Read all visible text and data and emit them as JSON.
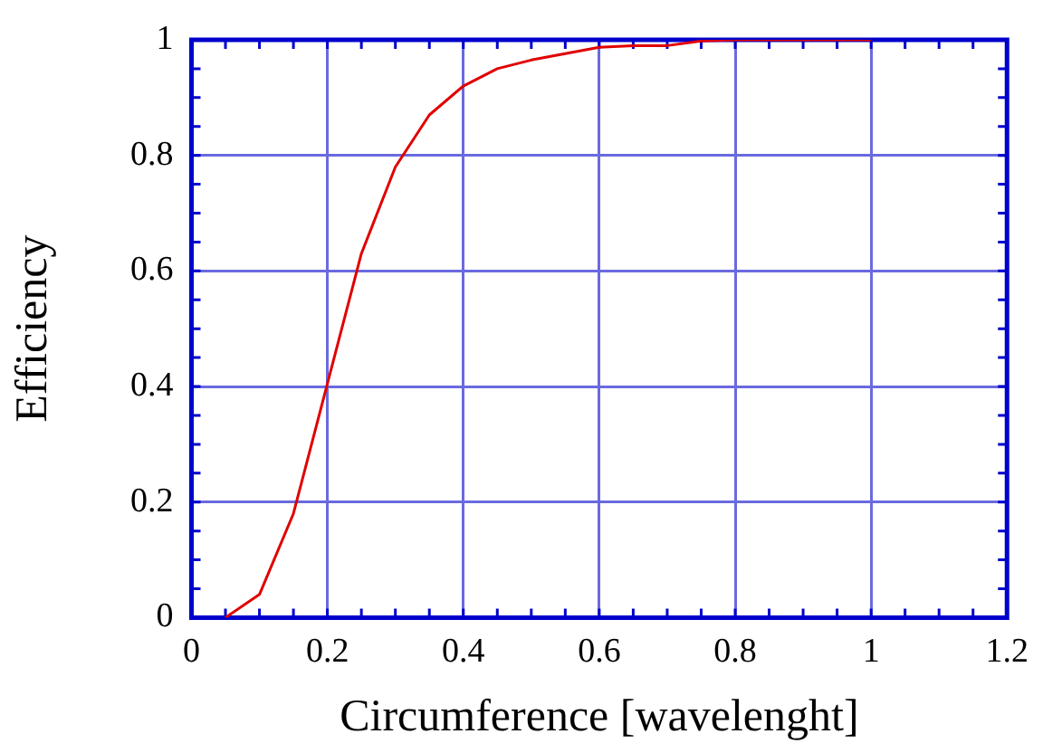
{
  "chart_data": {
    "type": "line",
    "xlabel": "Circumference [wavelenght]",
    "ylabel": "Efficiency",
    "x": [
      0.05,
      0.1,
      0.15,
      0.25,
      0.3,
      0.35,
      0.4,
      0.45,
      0.5,
      0.55,
      0.6,
      0.65,
      0.7,
      0.75,
      0.8,
      0.85,
      0.9,
      0.95,
      1.0
    ],
    "series": [
      {
        "color": "#e00000",
        "values": [
          0,
          0.04,
          0.18,
          0.63,
          0.78,
          0.87,
          0.92,
          0.95,
          0.965,
          0.976,
          0.987,
          0.99,
          0.99,
          0.998,
          1,
          1,
          1,
          1,
          1
        ]
      }
    ],
    "xlim": [
      0,
      1.2
    ],
    "xticks": [
      0,
      0.2,
      0.4,
      0.6,
      0.8,
      1,
      1.2
    ],
    "ylim": [
      0,
      1
    ],
    "yticks": [
      0,
      0.2,
      0.4,
      0.6,
      0.8,
      1
    ],
    "grid": true,
    "legend": false,
    "marker": "none",
    "line_style": "solid"
  }
}
